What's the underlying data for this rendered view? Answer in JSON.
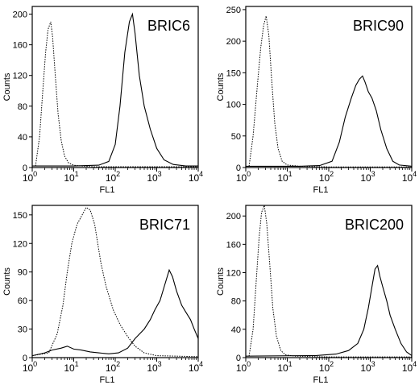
{
  "chart_data": [
    {
      "type": "line",
      "title": "BRIC6",
      "xlabel": "FL1",
      "ylabel": "Counts",
      "xscale": "log",
      "xlim": [
        1,
        10000
      ],
      "ylim": [
        0,
        210
      ],
      "xticks": [
        {
          "v": 1,
          "m": "10",
          "e": "0"
        },
        {
          "v": 10,
          "m": "10",
          "e": "1"
        },
        {
          "v": 100,
          "m": "10",
          "e": "2"
        },
        {
          "v": 1000,
          "m": "10",
          "e": "3"
        },
        {
          "v": 10000,
          "m": "10",
          "e": "4"
        }
      ],
      "yticks": [
        0,
        40,
        80,
        120,
        160,
        200
      ],
      "series": [
        {
          "style": "dotted",
          "points": [
            [
              1.2,
              2
            ],
            [
              1.5,
              40
            ],
            [
              1.8,
              100
            ],
            [
              2.1,
              150
            ],
            [
              2.4,
              180
            ],
            [
              2.8,
              190
            ],
            [
              3.1,
              170
            ],
            [
              3.6,
              120
            ],
            [
              4.2,
              70
            ],
            [
              5,
              35
            ],
            [
              6,
              15
            ],
            [
              7.5,
              6
            ],
            [
              10,
              3
            ],
            [
              15,
              2
            ],
            [
              30,
              1
            ],
            [
              100,
              1
            ],
            [
              1000,
              1
            ],
            [
              10000,
              1
            ]
          ]
        },
        {
          "style": "solid",
          "points": [
            [
              1,
              2
            ],
            [
              10,
              2
            ],
            [
              40,
              3
            ],
            [
              70,
              8
            ],
            [
              100,
              30
            ],
            [
              130,
              80
            ],
            [
              170,
              150
            ],
            [
              220,
              190
            ],
            [
              260,
              200
            ],
            [
              300,
              175
            ],
            [
              380,
              120
            ],
            [
              500,
              80
            ],
            [
              700,
              50
            ],
            [
              1000,
              25
            ],
            [
              1500,
              10
            ],
            [
              2500,
              4
            ],
            [
              5000,
              2
            ],
            [
              10000,
              2
            ]
          ]
        }
      ]
    },
    {
      "type": "line",
      "title": "BRIC90",
      "xlabel": "FL1",
      "ylabel": "Counts",
      "xscale": "log",
      "xlim": [
        1,
        10000
      ],
      "ylim": [
        0,
        255
      ],
      "xticks": [
        {
          "v": 1,
          "m": "10",
          "e": "0"
        },
        {
          "v": 10,
          "m": "10",
          "e": "1"
        },
        {
          "v": 100,
          "m": "10",
          "e": "2"
        },
        {
          "v": 1000,
          "m": "10",
          "e": "3"
        },
        {
          "v": 10000,
          "m": "10",
          "e": "4"
        }
      ],
      "yticks": [
        0,
        50,
        100,
        150,
        200,
        250
      ],
      "series": [
        {
          "style": "dotted",
          "points": [
            [
              1.2,
              2
            ],
            [
              1.5,
              50
            ],
            [
              1.9,
              130
            ],
            [
              2.3,
              190
            ],
            [
              2.7,
              225
            ],
            [
              3.1,
              240
            ],
            [
              3.6,
              210
            ],
            [
              4.2,
              140
            ],
            [
              5,
              70
            ],
            [
              6,
              30
            ],
            [
              7.5,
              10
            ],
            [
              10,
              4
            ],
            [
              20,
              2
            ],
            [
              100,
              1
            ],
            [
              10000,
              1
            ]
          ]
        },
        {
          "style": "solid",
          "points": [
            [
              1,
              2
            ],
            [
              20,
              2
            ],
            [
              60,
              3
            ],
            [
              120,
              10
            ],
            [
              180,
              40
            ],
            [
              250,
              80
            ],
            [
              350,
              110
            ],
            [
              450,
              130
            ],
            [
              550,
              140
            ],
            [
              650,
              145
            ],
            [
              750,
              135
            ],
            [
              900,
              120
            ],
            [
              1100,
              110
            ],
            [
              1400,
              90
            ],
            [
              1800,
              60
            ],
            [
              2500,
              30
            ],
            [
              3500,
              10
            ],
            [
              5000,
              4
            ],
            [
              10000,
              2
            ]
          ]
        }
      ]
    },
    {
      "type": "line",
      "title": "BRIC71",
      "xlabel": "FL1",
      "ylabel": "Counts",
      "xscale": "log",
      "xlim": [
        1,
        10000
      ],
      "ylim": [
        0,
        160
      ],
      "xticks": [
        {
          "v": 1,
          "m": "10",
          "e": "0"
        },
        {
          "v": 10,
          "m": "10",
          "e": "1"
        },
        {
          "v": 100,
          "m": "10",
          "e": "2"
        },
        {
          "v": 1000,
          "m": "10",
          "e": "3"
        },
        {
          "v": 10000,
          "m": "10",
          "e": "4"
        }
      ],
      "yticks": [
        0,
        30,
        60,
        90,
        120,
        150
      ],
      "series": [
        {
          "style": "dotted",
          "points": [
            [
              1,
              2
            ],
            [
              2.5,
              5
            ],
            [
              4,
              25
            ],
            [
              5.5,
              55
            ],
            [
              7,
              90
            ],
            [
              9,
              120
            ],
            [
              12,
              140
            ],
            [
              16,
              150
            ],
            [
              20,
              158
            ],
            [
              25,
              155
            ],
            [
              32,
              140
            ],
            [
              45,
              100
            ],
            [
              60,
              75
            ],
            [
              90,
              50
            ],
            [
              130,
              35
            ],
            [
              200,
              22
            ],
            [
              300,
              12
            ],
            [
              500,
              5
            ],
            [
              1000,
              2
            ],
            [
              10000,
              1
            ]
          ]
        },
        {
          "style": "solid",
          "points": [
            [
              1,
              2
            ],
            [
              2,
              5
            ],
            [
              3,
              8
            ],
            [
              5,
              10
            ],
            [
              7,
              12
            ],
            [
              10,
              9
            ],
            [
              15,
              8
            ],
            [
              25,
              6
            ],
            [
              40,
              5
            ],
            [
              70,
              4
            ],
            [
              120,
              5
            ],
            [
              200,
              10
            ],
            [
              300,
              20
            ],
            [
              500,
              30
            ],
            [
              700,
              40
            ],
            [
              900,
              50
            ],
            [
              1200,
              60
            ],
            [
              1600,
              78
            ],
            [
              2000,
              92
            ],
            [
              2400,
              85
            ],
            [
              3000,
              70
            ],
            [
              4000,
              55
            ],
            [
              5000,
              48
            ],
            [
              6500,
              40
            ],
            [
              8000,
              30
            ],
            [
              10000,
              20
            ]
          ]
        }
      ]
    },
    {
      "type": "line",
      "title": "BRIC200",
      "xlabel": "FL1",
      "ylabel": "Counts",
      "xscale": "log",
      "xlim": [
        1,
        10000
      ],
      "ylim": [
        0,
        215
      ],
      "xticks": [
        {
          "v": 1,
          "m": "10",
          "e": "0"
        },
        {
          "v": 10,
          "m": "10",
          "e": "1"
        },
        {
          "v": 100,
          "m": "10",
          "e": "2"
        },
        {
          "v": 1000,
          "m": "10",
          "e": "3"
        },
        {
          "v": 10000,
          "m": "10",
          "e": "4"
        }
      ],
      "yticks": [
        0,
        40,
        80,
        120,
        160,
        200
      ],
      "series": [
        {
          "style": "dotted",
          "points": [
            [
              1.2,
              2
            ],
            [
              1.5,
              40
            ],
            [
              1.8,
              110
            ],
            [
              2.1,
              170
            ],
            [
              2.4,
              205
            ],
            [
              2.8,
              215
            ],
            [
              3.2,
              190
            ],
            [
              3.8,
              130
            ],
            [
              4.5,
              70
            ],
            [
              5.5,
              30
            ],
            [
              7,
              10
            ],
            [
              9,
              4
            ],
            [
              15,
              2
            ],
            [
              100,
              1
            ],
            [
              10000,
              1
            ]
          ]
        },
        {
          "style": "solid",
          "points": [
            [
              1,
              2
            ],
            [
              50,
              3
            ],
            [
              150,
              5
            ],
            [
              300,
              10
            ],
            [
              500,
              20
            ],
            [
              700,
              40
            ],
            [
              900,
              70
            ],
            [
              1100,
              100
            ],
            [
              1300,
              125
            ],
            [
              1500,
              130
            ],
            [
              1700,
              115
            ],
            [
              2000,
              100
            ],
            [
              2500,
              80
            ],
            [
              3000,
              60
            ],
            [
              4000,
              40
            ],
            [
              5500,
              20
            ],
            [
              7500,
              8
            ],
            [
              10000,
              3
            ]
          ]
        }
      ]
    }
  ]
}
